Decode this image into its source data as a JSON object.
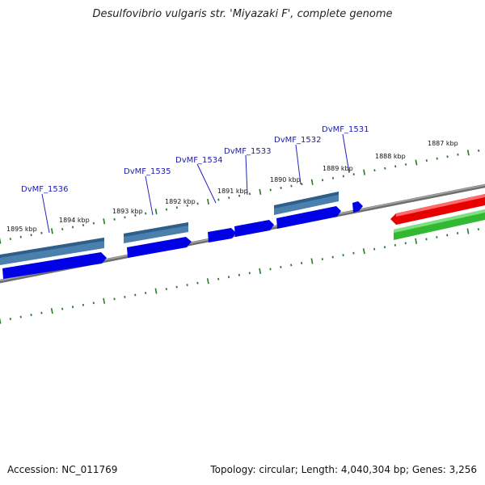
{
  "title": "Desulfovibrio vulgaris str. 'Miyazaki F', complete genome",
  "footer": {
    "accession": "Accession: NC_011769",
    "stats": "Topology: circular; Length: 4,040,304 bp; Genes: 3,256"
  },
  "colors": {
    "backbone": "#808080",
    "forward_cds": "#0000ee",
    "forward_gene": "#4682b4",
    "reverse_cds": "#ee0000",
    "reverse_gene": "#2eb82e",
    "ticks": "#2a7a2a",
    "label_text": "#1a1ab0"
  },
  "kbp_ticks": [
    "1895 kbp",
    "1894 kbp",
    "1893 kbp",
    "1892 kbp",
    "1891 kbp",
    "1890 kbp",
    "1889 kbp",
    "1888 kbp",
    "1887 kbp"
  ],
  "gene_labels": [
    "DvMF_1536",
    "DvMF_1535",
    "DvMF_1534",
    "DvMF_1533",
    "DvMF_1532",
    "DvMF_1531"
  ]
}
